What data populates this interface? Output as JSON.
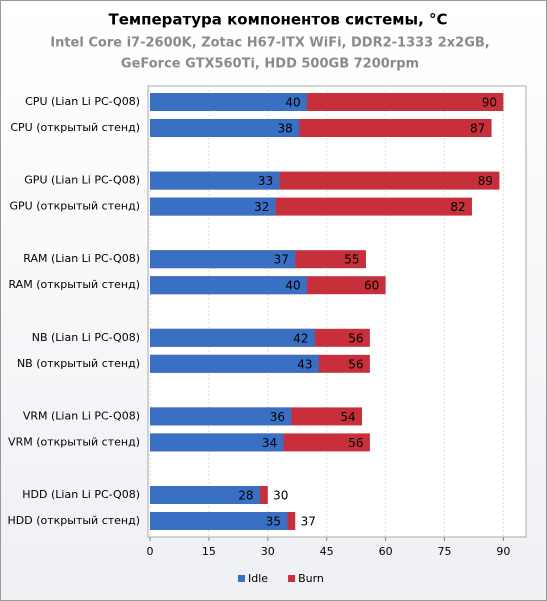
{
  "chart_data": {
    "type": "overlap_bar_h",
    "title": "Температура компонентов системы, °C",
    "subtitle": [
      "Intel Core i7-2600K, Zotac H67-ITX WiFi, DDR2-1333 2x2GB,",
      "GeForce GTX560Ti, HDD 500GB 7200rpm"
    ],
    "categories": [
      "CPU (Lian Li PC-Q08)",
      "CPU (открытый стенд)",
      "GPU (Lian Li PC-Q08)",
      "GPU (открытый стенд)",
      "RAM (Lian Li PC-Q08)",
      "RAM (открытый стенд)",
      "NB (Lian Li PC-Q08)",
      "NB (открытый стенд)",
      "VRM (Lian Li PC-Q08)",
      "VRM (открытый стенд)",
      "HDD (Lian Li PC-Q08)",
      "HDD (открытый стенд)"
    ],
    "series": [
      {
        "name": "Idle",
        "color": "#3a70c4",
        "values": [
          40,
          38,
          33,
          32,
          37,
          40,
          42,
          43,
          36,
          34,
          28,
          35
        ]
      },
      {
        "name": "Burn",
        "color": "#c7303a",
        "values": [
          90,
          87,
          89,
          82,
          55,
          60,
          56,
          56,
          54,
          56,
          30,
          37
        ]
      }
    ],
    "xlim": [
      0,
      95
    ],
    "xticks": [
      0,
      15,
      30,
      45,
      60,
      75,
      90
    ],
    "grid": true,
    "legend": "bottom"
  }
}
